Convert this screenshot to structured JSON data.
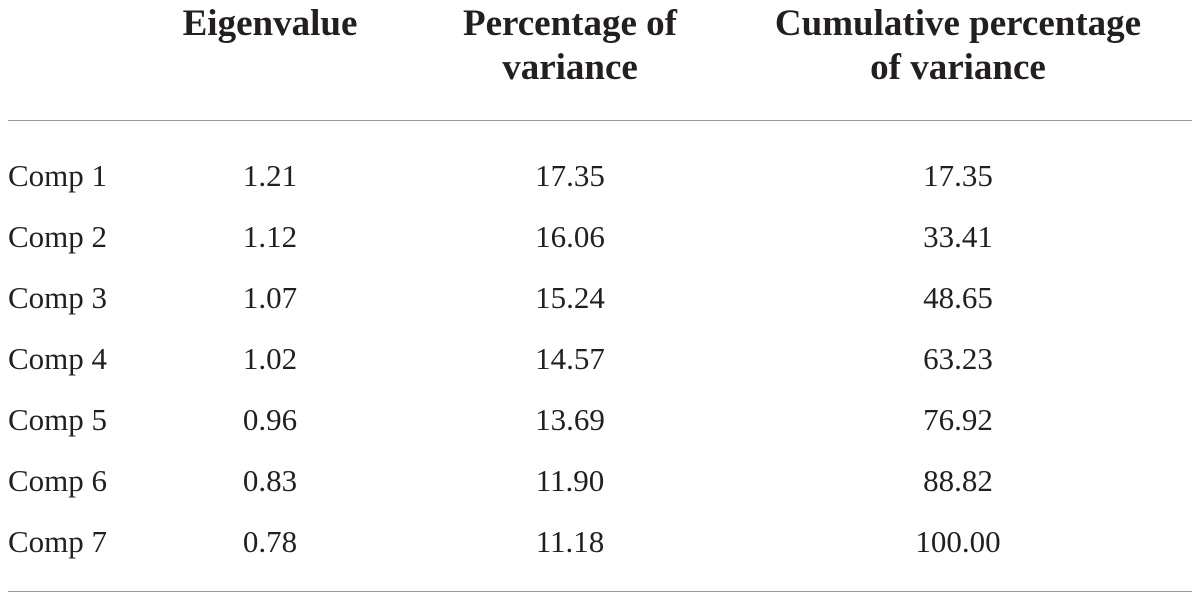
{
  "table": {
    "headers": [
      {
        "line1": "Eigenvalue",
        "line2": ""
      },
      {
        "line1": "Percentage of",
        "line2": "variance"
      },
      {
        "line1": "Cumulative percentage",
        "line2": "of variance"
      }
    ],
    "rows": [
      {
        "component": "Comp 1",
        "eigenvalue": "1.21",
        "percentage": "17.35",
        "cumulative": "17.35"
      },
      {
        "component": "Comp 2",
        "eigenvalue": "1.12",
        "percentage": "16.06",
        "cumulative": "33.41"
      },
      {
        "component": "Comp 3",
        "eigenvalue": "1.07",
        "percentage": "15.24",
        "cumulative": "48.65"
      },
      {
        "component": "Comp 4",
        "eigenvalue": "1.02",
        "percentage": "14.57",
        "cumulative": "63.23"
      },
      {
        "component": "Comp 5",
        "eigenvalue": "0.96",
        "percentage": "13.69",
        "cumulative": "76.92"
      },
      {
        "component": "Comp 6",
        "eigenvalue": "0.83",
        "percentage": "11.90",
        "cumulative": "88.82"
      },
      {
        "component": "Comp 7",
        "eigenvalue": "0.78",
        "percentage": "11.18",
        "cumulative": "100.00"
      }
    ]
  }
}
